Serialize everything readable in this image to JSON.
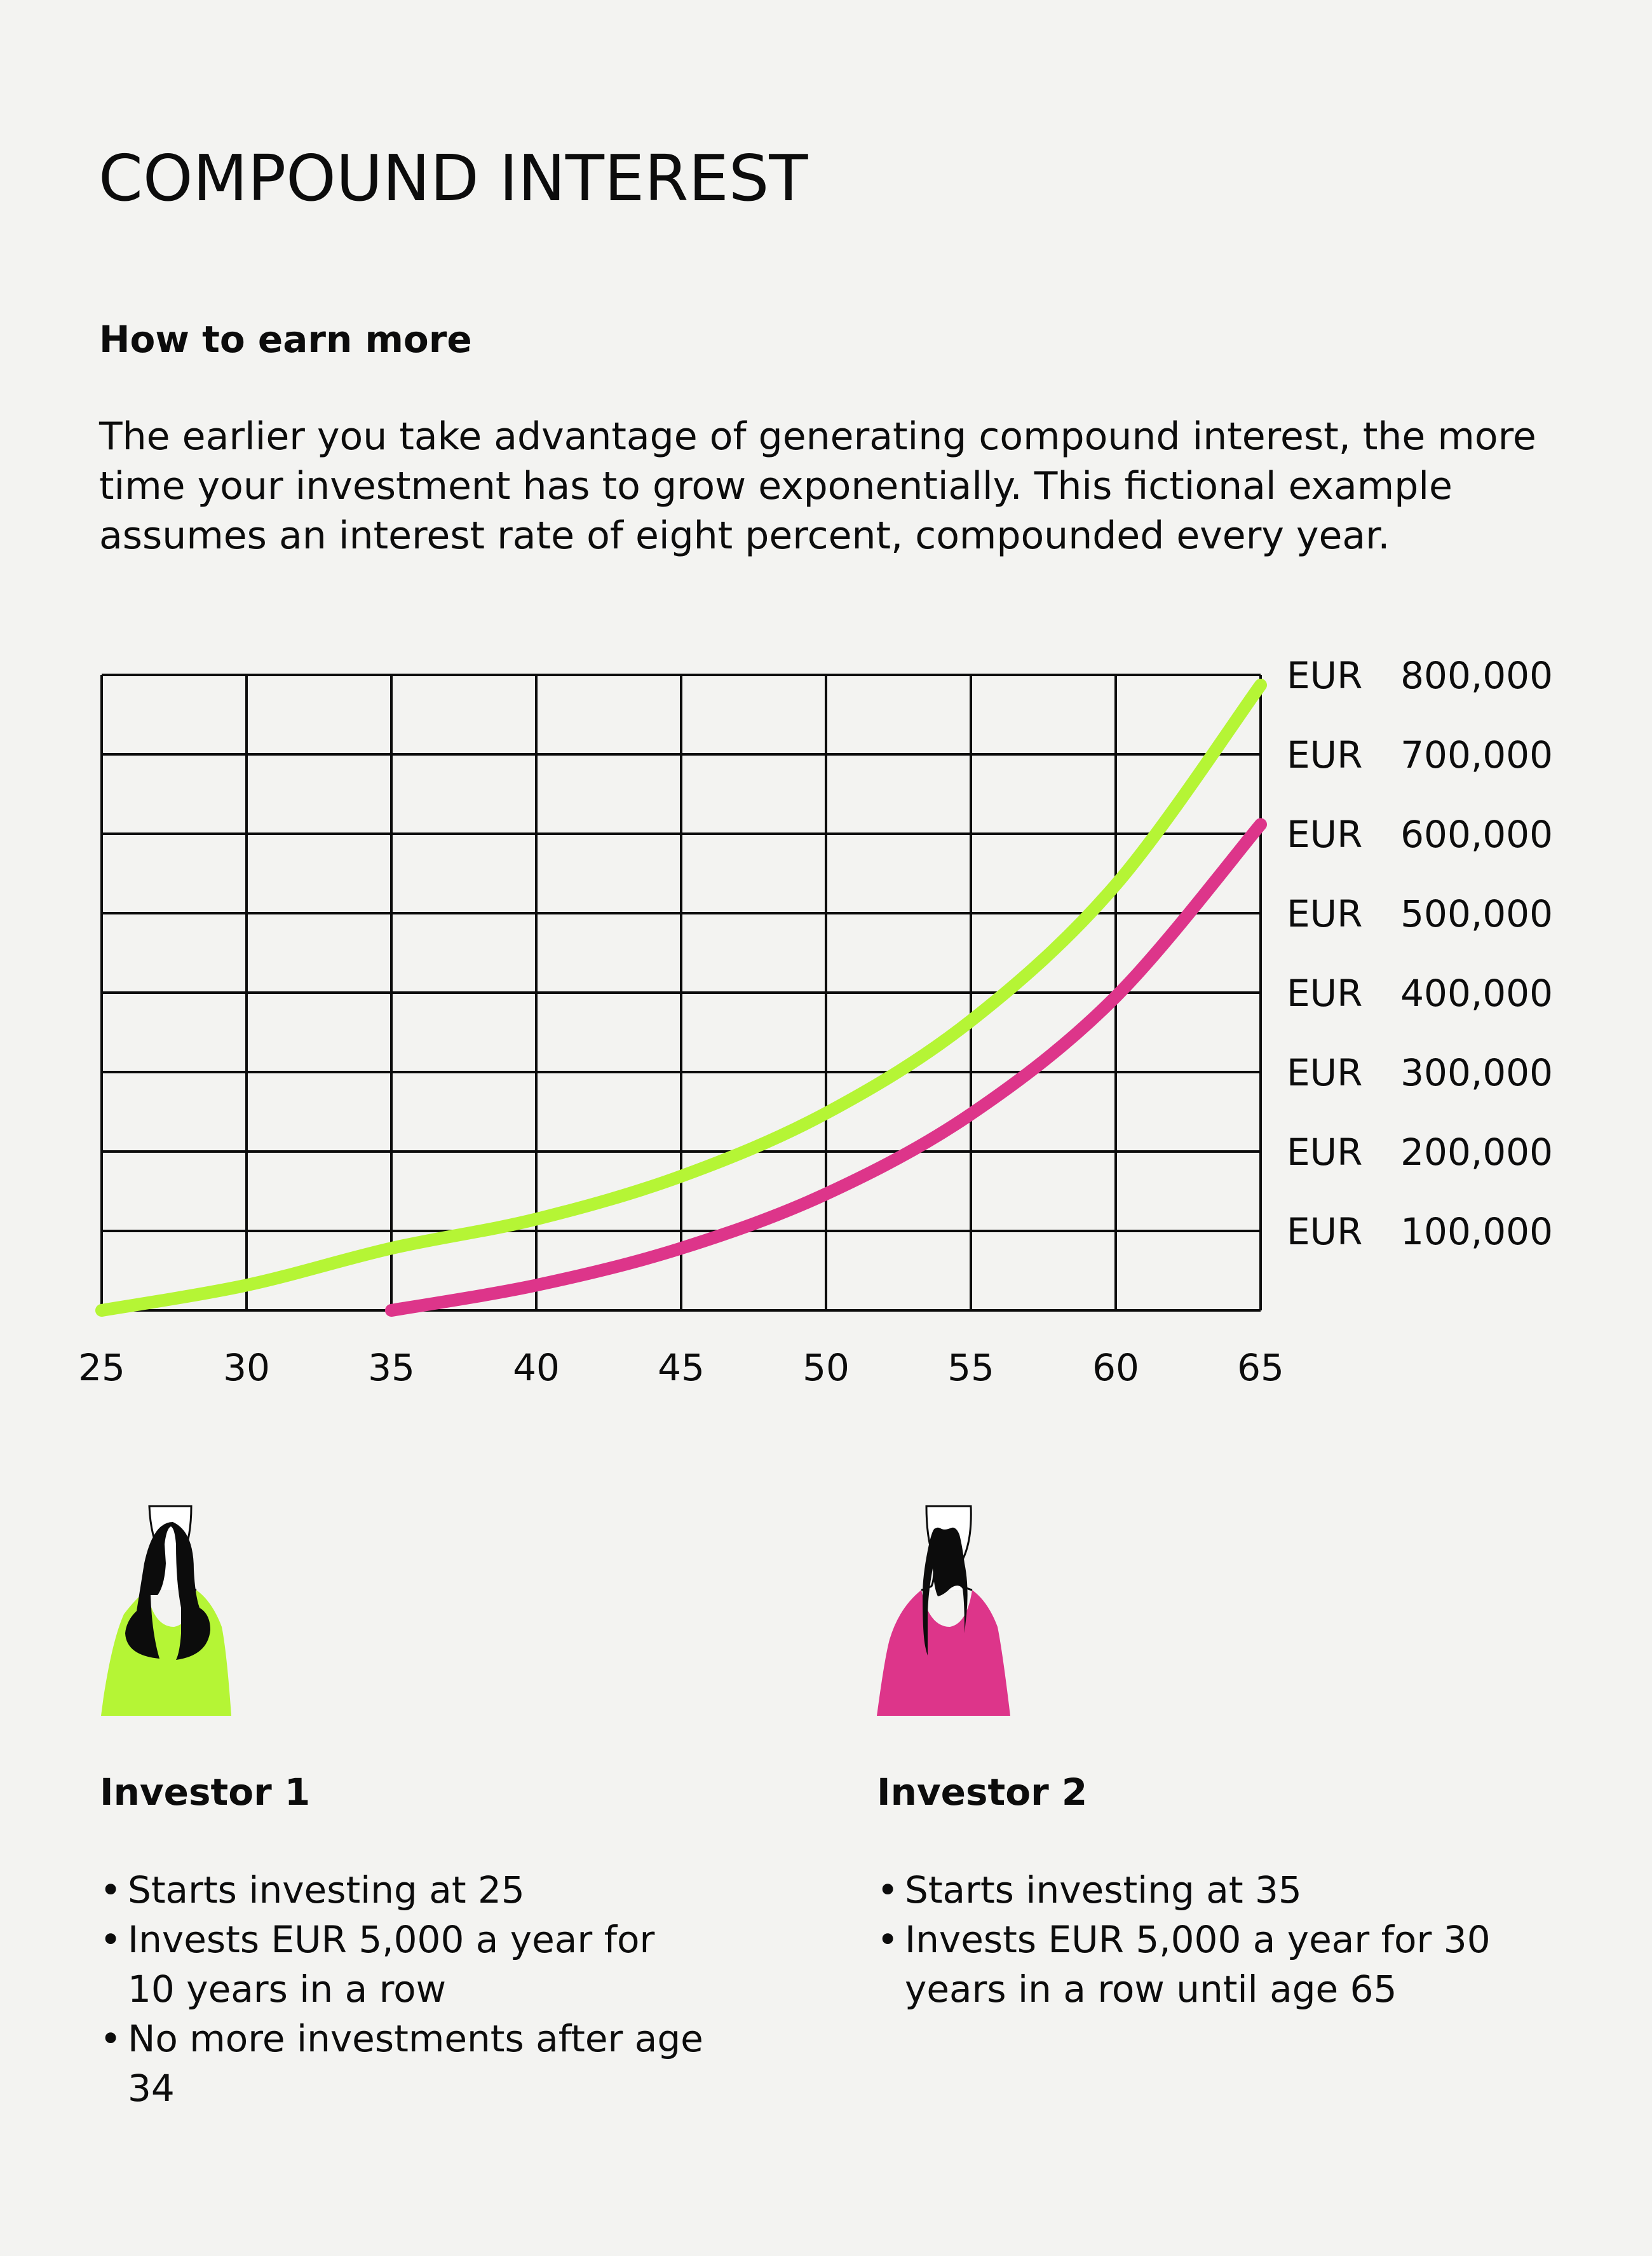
{
  "title": "COMPOUND INTEREST",
  "subtitle": "How to earn more",
  "intro": "The earlier you take advantage of generating compound interest, the more time your investment has to grow exponentially. This fictional example assumes an interest rate of eight percent, compounded every year.",
  "colors": {
    "background": "#f3f3f1",
    "investor1": "#b5f535",
    "investor2": "#dd358a",
    "grid": "#0c0c0c"
  },
  "chart_data": {
    "type": "line",
    "xlim": [
      25,
      65
    ],
    "ylim": [
      0,
      800000
    ],
    "grid": true,
    "x_ticks": [
      "25",
      "30",
      "35",
      "40",
      "45",
      "50",
      "55",
      "60",
      "65"
    ],
    "y_ticks": [
      {
        "currency": "EUR",
        "value": "100,000"
      },
      {
        "currency": "EUR",
        "value": "200,000"
      },
      {
        "currency": "EUR",
        "value": "300,000"
      },
      {
        "currency": "EUR",
        "value": "400,000"
      },
      {
        "currency": "EUR",
        "value": "500,000"
      },
      {
        "currency": "EUR",
        "value": "600,000"
      },
      {
        "currency": "EUR",
        "value": "700,000"
      },
      {
        "currency": "EUR",
        "value": "800,000"
      }
    ],
    "y_axis_side": "right",
    "series": [
      {
        "x": [
          25,
          30,
          35,
          40,
          45,
          50,
          55,
          60,
          65
        ],
        "y": [
          0,
          31700,
          78200,
          114900,
          168900,
          248200,
          364600,
          535700,
          787200
        ],
        "color": "#b5f535"
      },
      {
        "x": [
          35,
          40,
          45,
          50,
          55,
          60,
          65
        ],
        "y": [
          0,
          31700,
          78200,
          146600,
          247100,
          394800,
          611700
        ],
        "color": "#dd358a"
      }
    ]
  },
  "investors": [
    {
      "name": "Investor 1",
      "icon": "woman-icon",
      "color": "#b5f535",
      "bullets": [
        "Starts investing at 25",
        "Invests EUR 5,000 a year for 10 years in a row",
        "No more investments after age 34"
      ]
    },
    {
      "name": "Investor 2",
      "icon": "man-icon",
      "color": "#dd358a",
      "bullets": [
        "Starts investing at 35",
        "Invests EUR 5,000 a year for 30 years in a row until age 65"
      ]
    }
  ]
}
